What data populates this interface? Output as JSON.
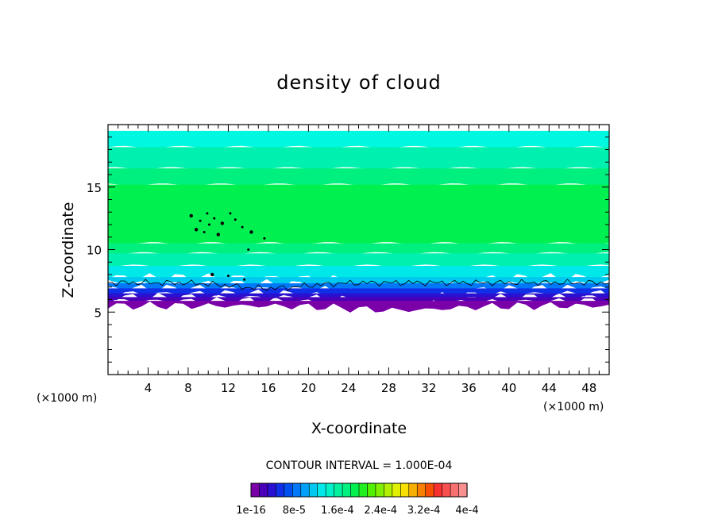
{
  "chart_data": {
    "type": "heatmap",
    "title": "density of cloud",
    "xlabel": "X-coordinate",
    "ylabel": "Z-coordinate",
    "x_unit": "(×1000 m)",
    "y_unit": "(×1000 m)",
    "xlim": [
      0,
      50
    ],
    "ylim": [
      0,
      20
    ],
    "x_ticks": [
      4,
      8,
      12,
      16,
      20,
      24,
      28,
      32,
      36,
      40,
      44,
      48
    ],
    "y_ticks": [
      5,
      10,
      15
    ],
    "contour_interval_label": "CONTOUR INTERVAL = 1.000E-04",
    "colorbar": {
      "labels": [
        "1e-16",
        "8e-5",
        "1.6e-4",
        "2.4e-4",
        "3.2e-4",
        "4e-4"
      ],
      "colors": [
        "#7a00a8",
        "#4a00b8",
        "#2a10d0",
        "#1030e8",
        "#0050f0",
        "#0078f8",
        "#00a0f8",
        "#00c8f0",
        "#00e8e8",
        "#00f0c8",
        "#00f0a0",
        "#00f080",
        "#00f050",
        "#20f020",
        "#50f000",
        "#80f000",
        "#b0f000",
        "#e0f000",
        "#f8e000",
        "#f8b000",
        "#f88000",
        "#f85000",
        "#f83030",
        "#f85050",
        "#f87070",
        "#f89090"
      ]
    },
    "bands": [
      {
        "color": "#00f8e0",
        "z": [
          18.2,
          19.5
        ]
      },
      {
        "color": "#00f0b0",
        "z": [
          16.5,
          18.2
        ]
      },
      {
        "color": "#00f080",
        "z": [
          15.2,
          16.5
        ]
      },
      {
        "color": "#00f050",
        "z": [
          10.5,
          15.2
        ]
      },
      {
        "color": "#00f080",
        "z": [
          9.7,
          10.5
        ]
      },
      {
        "color": "#00f0b0",
        "z": [
          8.7,
          9.7
        ]
      },
      {
        "color": "#00e8e8",
        "z": [
          7.8,
          8.7
        ]
      },
      {
        "color": "#00c8f0",
        "z": [
          7.3,
          7.8
        ]
      },
      {
        "color": "#0078f8",
        "z": [
          6.9,
          7.3
        ]
      },
      {
        "color": "#1030e8",
        "z": [
          6.5,
          6.9
        ]
      },
      {
        "color": "#2a10d0",
        "z": [
          6.2,
          6.5
        ]
      },
      {
        "color": "#4a00b8",
        "z": [
          5.9,
          6.2
        ]
      },
      {
        "color": "#7a00a8",
        "z": [
          5.5,
          5.9
        ]
      }
    ]
  }
}
